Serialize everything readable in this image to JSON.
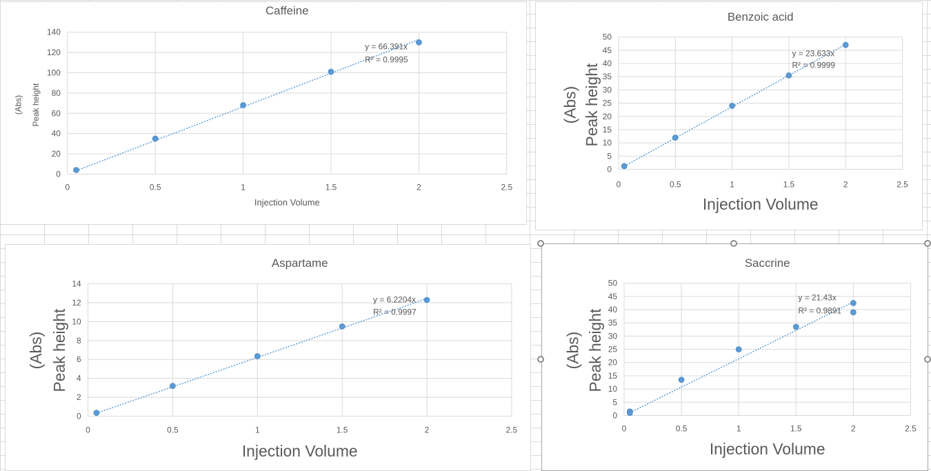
{
  "chart_data": [
    {
      "type": "scatter",
      "title": "Caffeine",
      "xlabel": "Injection Volume",
      "ylabel_lines": [
        "(Abs)",
        "Peak height"
      ],
      "xlim": [
        0,
        2.5
      ],
      "ylim": [
        0,
        140
      ],
      "xticks": [
        0,
        0.5,
        1,
        1.5,
        2,
        2.5
      ],
      "yticks": [
        0,
        20,
        40,
        60,
        80,
        100,
        120,
        140
      ],
      "grid": true,
      "series": [
        {
          "x": [
            0.05,
            0.5,
            1,
            1.5,
            2
          ],
          "y": [
            4,
            35,
            68,
            101,
            130
          ]
        }
      ],
      "trendline": {
        "slope": 66.391,
        "intercept": 0,
        "x_range": [
          0.05,
          2
        ]
      },
      "annotations": [
        "y = 66.391x",
        "R² = 0.9995"
      ]
    },
    {
      "type": "scatter",
      "title": "Benzoic acid",
      "xlabel": "Injection Volume",
      "ylabel_lines": [
        "(Abs)",
        "Peak height"
      ],
      "xlim": [
        0,
        2.5
      ],
      "ylim": [
        0,
        50
      ],
      "xticks": [
        0,
        0.5,
        1,
        1.5,
        2,
        2.5
      ],
      "yticks": [
        0,
        5,
        10,
        15,
        20,
        25,
        30,
        35,
        40,
        45,
        50
      ],
      "grid": true,
      "series": [
        {
          "x": [
            0.05,
            0.5,
            1,
            1.5,
            2
          ],
          "y": [
            1.2,
            12,
            24,
            35.5,
            47
          ]
        }
      ],
      "trendline": {
        "slope": 23.633,
        "intercept": 0,
        "x_range": [
          0.05,
          2
        ]
      },
      "annotations": [
        "y = 23.633x",
        "R² = 0.9999"
      ]
    },
    {
      "type": "scatter",
      "title": "Aspartame",
      "xlabel": "Injection Volume",
      "ylabel_lines": [
        "(Abs)",
        "Peak height"
      ],
      "xlim": [
        0,
        2.5
      ],
      "ylim": [
        0,
        14
      ],
      "xticks": [
        0,
        0.5,
        1,
        1.5,
        2,
        2.5
      ],
      "yticks": [
        0,
        2,
        4,
        6,
        8,
        10,
        12,
        14
      ],
      "grid": true,
      "series": [
        {
          "x": [
            0.05,
            0.5,
            1,
            1.5,
            2
          ],
          "y": [
            0.35,
            3.2,
            6.35,
            9.5,
            12.3
          ]
        }
      ],
      "trendline": {
        "slope": 6.2204,
        "intercept": 0,
        "x_range": [
          0.05,
          2
        ]
      },
      "annotations": [
        "y = 6.2204x",
        "R² = 0.9997"
      ]
    },
    {
      "type": "scatter",
      "title": "Saccrine",
      "xlabel": "Injection Volume",
      "ylabel_lines": [
        "(Abs)",
        "Peak height"
      ],
      "xlim": [
        0,
        2.5
      ],
      "ylim": [
        0,
        50
      ],
      "xticks": [
        0,
        0.5,
        1,
        1.5,
        2,
        2.5
      ],
      "yticks": [
        0,
        5,
        10,
        15,
        20,
        25,
        30,
        35,
        40,
        45,
        50
      ],
      "grid": true,
      "series": [
        {
          "x": [
            0.05,
            0.05,
            0.5,
            1,
            1.5,
            2,
            2
          ],
          "y": [
            1.5,
            1,
            13.5,
            25,
            33.5,
            39,
            42.5
          ]
        }
      ],
      "trendline": {
        "slope": 21.43,
        "intercept": 0,
        "x_range": [
          0.05,
          2
        ]
      },
      "annotations": [
        "y = 21.43x",
        "R² = 0.9891"
      ]
    }
  ],
  "colors": {
    "marker": "#5b9bd5",
    "marker_edge": "#4a86c0",
    "trendline": "#5b9bd5",
    "grid": "#d9d9d9",
    "text": "#595959"
  }
}
